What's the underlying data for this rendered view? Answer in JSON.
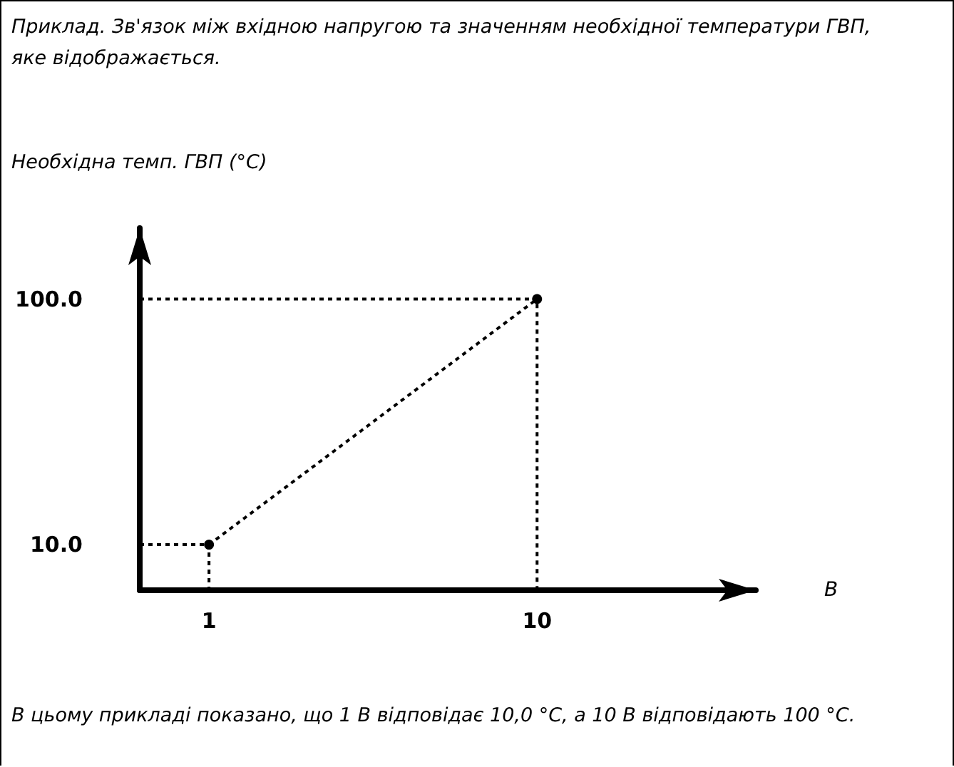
{
  "chart_data": {
    "type": "line",
    "title": "Приклад. Зв'язок між вхідною напругою та значенням необхідної температури ГВП, яке відображається.",
    "ylabel": "Необхідна темп. ГВП (°C)",
    "xlabel": "В",
    "annotations": [
      "В цьому прикладі показано, що 1 В відповідає 10,0 °C, а 10 В відповідають 100 °C."
    ],
    "series": [
      {
        "color": "#000000",
        "x": [
          1,
          10
        ],
        "values": [
          10,
          100
        ],
        "marker": "circle",
        "line_style": "dotted"
      },
      {
        "color": "#000000",
        "x": [
          -0.9,
          1,
          1
        ],
        "values": [
          10,
          10,
          -6.7
        ],
        "marker": "none",
        "line_style": "dotted"
      },
      {
        "color": "#000000",
        "x": [
          -0.9,
          10,
          10
        ],
        "values": [
          100,
          100,
          -6.7
        ],
        "marker": "none",
        "line_style": "dotted"
      }
    ],
    "xlim": [
      -0.9,
      16
    ],
    "ylim": [
      -6.7,
      126
    ],
    "xticks": [
      1,
      10
    ],
    "yticks": [
      {
        "value": 10,
        "label": "10.0"
      },
      {
        "value": 100,
        "label": "100.0"
      }
    ],
    "grid": false
  }
}
